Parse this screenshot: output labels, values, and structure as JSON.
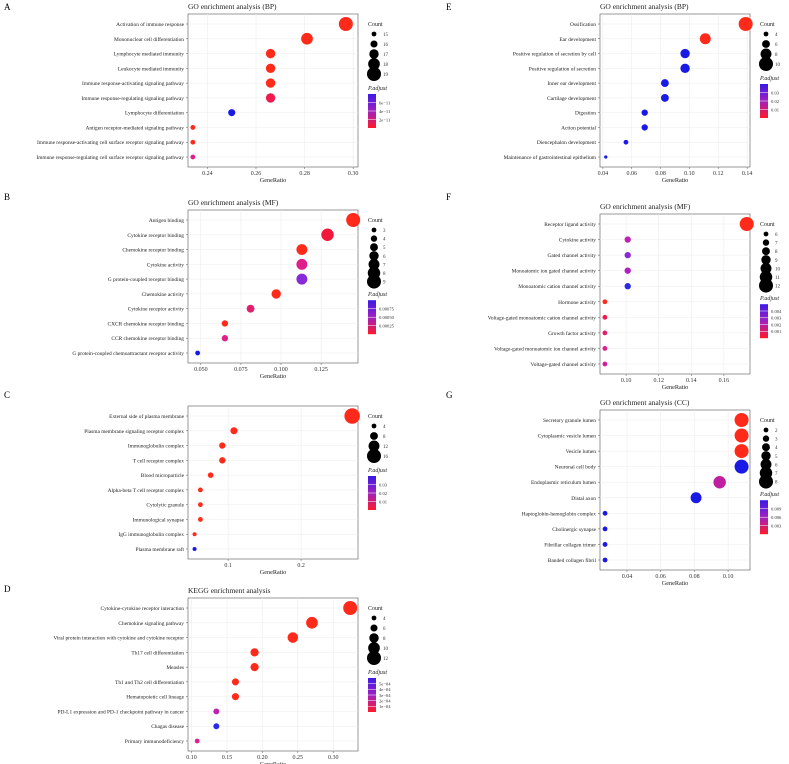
{
  "figure": {
    "panels_order": [
      "A",
      "B",
      "C",
      "D",
      "E",
      "F",
      "G"
    ]
  },
  "chart_data": [
    {
      "panel": "A",
      "type": "scatter",
      "title": "GO enrichment analysis (BP)",
      "xlabel": "GeneRatio",
      "xlim": [
        0.232,
        0.302
      ],
      "xticks": [
        "0.24",
        "0.26",
        "0.28",
        "0.30"
      ],
      "xtick_values": [
        0.24,
        0.26,
        0.28,
        0.3
      ],
      "categories": [
        "Activation of immune response",
        "Mononuclear cell differentiation",
        "Lymphocyte mediated immunity",
        "Leukocyte mediated immunity",
        "Immune response-activating signaling pathway",
        "Immune response-regulating signaling pathway",
        "Lymphocyte differentiation",
        "Antigen receptor-mediated signaling pathway",
        "Immune response-activating cell surface receptor signaling pathway",
        "Immune response-regulating cell surface receptor signaling pathway"
      ],
      "values": [
        0.297,
        0.281,
        0.266,
        0.266,
        0.266,
        0.266,
        0.25,
        0.234,
        0.234,
        0.234
      ],
      "counts": [
        19,
        18,
        17,
        17,
        17,
        17,
        16,
        15,
        15,
        15
      ],
      "colors": [
        "#ff2a1a",
        "#ff2a1a",
        "#ff2a1a",
        "#ff2a1a",
        "#ff2a1a",
        "#f01a50",
        "#1a1ae6",
        "#ff2a1a",
        "#ff2a1a",
        "#e0208a"
      ],
      "size_legend_title": "Count",
      "size_legend_labels": [
        "15",
        "16",
        "17",
        "18",
        "19"
      ],
      "size_legend_values": [
        15,
        16,
        17,
        18,
        19
      ],
      "color_legend_title": "P.adjust",
      "color_legend_labels": [
        "6e−11",
        "4e−11",
        "2e−11"
      ]
    },
    {
      "panel": "B",
      "type": "scatter",
      "title": "GO enrichment analysis (MF)",
      "xlabel": "GeneRatio",
      "xlim": [
        0.042,
        0.148
      ],
      "xticks": [
        "0.050",
        "0.075",
        "0.100",
        "0.125",
        "0.150"
      ],
      "xtick_values": [
        0.05,
        0.075,
        0.1,
        0.125,
        0.15
      ],
      "categories": [
        "Antigen binding",
        "Cytokine receptor binding",
        "Chemokine receptor binding",
        "Cytokine activity",
        "G protein-coupled receptor binding",
        "Chemokine activity",
        "Cytokine receptor activity",
        "CXCR chemokine receptor binding",
        "CCR chemokine receptor binding",
        "G protein-coupled chemoattractant receptor activity"
      ],
      "values": [
        0.145,
        0.129,
        0.113,
        0.113,
        0.113,
        0.097,
        0.081,
        0.065,
        0.065,
        0.048
      ],
      "counts": [
        9,
        8,
        7,
        7,
        7,
        6,
        5,
        4,
        4,
        3
      ],
      "colors": [
        "#ff2a1a",
        "#f2183a",
        "#ff2a1a",
        "#e0208a",
        "#8a2ad6",
        "#ff2a1a",
        "#e0206a",
        "#ff2a1a",
        "#e0208a",
        "#1a1ae6"
      ],
      "size_legend_title": "Count",
      "size_legend_labels": [
        "3",
        "4",
        "5",
        "6",
        "7",
        "8",
        "9"
      ],
      "size_legend_values": [
        3,
        4,
        5,
        6,
        7,
        8,
        9
      ],
      "color_legend_title": "P.adjust",
      "color_legend_labels": [
        "0.00075",
        "0.00050",
        "0.00025"
      ]
    },
    {
      "panel": "C",
      "type": "scatter",
      "title": "",
      "xlabel": "GeneRatio",
      "xlim": [
        0.045,
        0.278
      ],
      "xticks": [
        "0.1",
        "0.2"
      ],
      "xtick_values": [
        0.1,
        0.2
      ],
      "categories": [
        "External side of plasma membrane",
        "Plasma membrane signaling receptor complex",
        "Immunoglobulin complex",
        "T cell receptor complex",
        "Blood microparticle",
        "Alpha-beta T cell receptor complex",
        "Cytolytic granule",
        "Immunological synapse",
        "IgG immunoglobulin complex",
        "Plasma membrane raft"
      ],
      "values": [
        0.27,
        0.108,
        0.092,
        0.092,
        0.076,
        0.062,
        0.062,
        0.062,
        0.054,
        0.054
      ],
      "counts": [
        18,
        7,
        6,
        6,
        5,
        4,
        4,
        4,
        3,
        3
      ],
      "colors": [
        "#ff2a1a",
        "#ff2a1a",
        "#ff2a1a",
        "#ff2a1a",
        "#ff2a1a",
        "#ff2a1a",
        "#ff2a1a",
        "#ff2a1a",
        "#ff2a1a",
        "#1a1ae6"
      ],
      "size_legend_title": "Count",
      "size_legend_labels": [
        "4",
        "8",
        "12",
        "16"
      ],
      "size_legend_values": [
        4,
        8,
        12,
        16
      ],
      "color_legend_title": "P.adjust",
      "color_legend_labels": [
        "0.03",
        "0.02",
        "0.01"
      ]
    },
    {
      "panel": "D",
      "type": "scatter",
      "title": "KEGG enrichment analysis",
      "xlabel": "GeneRatio",
      "xlim": [
        0.095,
        0.335
      ],
      "xticks": [
        "0.10",
        "0.15",
        "0.20",
        "0.25",
        "0.30"
      ],
      "xtick_values": [
        0.1,
        0.15,
        0.2,
        0.25,
        0.3
      ],
      "categories": [
        "Cytokine-cytokine receptor interaction",
        "Chemokine signaling pathway",
        "Viral protein interaction with cytokine and cytokine receptor",
        "Th17 cell differentiation",
        "Measles",
        "Th1 and Th2 cell differentiation",
        "Hematopoietic cell lineage",
        "PD-L1 expression and PD-1 checkpoint pathway in cancer",
        "Chagas disease",
        "Primary immunodeficiency"
      ],
      "values": [
        0.324,
        0.27,
        0.243,
        0.189,
        0.189,
        0.162,
        0.162,
        0.135,
        0.135,
        0.108
      ],
      "counts": [
        12,
        10,
        9,
        7,
        7,
        6,
        6,
        5,
        5,
        4
      ],
      "colors": [
        "#ff2a1a",
        "#ff2a1a",
        "#ff2a1a",
        "#ff2a1a",
        "#ff2a1a",
        "#ff2a1a",
        "#ff2a1a",
        "#c020b0",
        "#2a2ae6",
        "#e0208a"
      ],
      "size_legend_title": "Count",
      "size_legend_labels": [
        "4",
        "6",
        "8",
        "10",
        "12"
      ],
      "size_legend_values": [
        4,
        6,
        8,
        10,
        12
      ],
      "color_legend_title": "P.adjust",
      "color_legend_labels": [
        "5e−04",
        "4e−04",
        "3e−04",
        "2e−04",
        "1e−04"
      ]
    },
    {
      "panel": "E",
      "type": "scatter",
      "title": "GO enrichment analysis (BP)",
      "xlabel": "GeneRatio",
      "xlim": [
        0.038,
        0.142
      ],
      "xticks": [
        "0.04",
        "0.06",
        "0.08",
        "0.10",
        "0.12",
        "0.14"
      ],
      "xtick_values": [
        0.04,
        0.06,
        0.08,
        0.1,
        0.12,
        0.14
      ],
      "categories": [
        "Ossification",
        "Ear development",
        "Positive regulation of secretion by cell",
        "Positive regulation of secretion",
        "Inner ear development",
        "Cartilage development",
        "Digestion",
        "Action potential",
        "Diencephalon development",
        "Maintenance of gastrointestinal epithelium"
      ],
      "values": [
        0.139,
        0.111,
        0.097,
        0.097,
        0.083,
        0.083,
        0.069,
        0.069,
        0.056,
        0.042
      ],
      "counts": [
        10,
        8,
        7,
        7,
        6,
        6,
        5,
        5,
        4,
        3
      ],
      "colors": [
        "#ff2a1a",
        "#ff2a1a",
        "#1a1ae6",
        "#1a1ae6",
        "#1a1ae6",
        "#1a1ae6",
        "#1a1ae6",
        "#1a1ae6",
        "#1a1ae6",
        "#1a1ae6"
      ],
      "size_legend_title": "Count",
      "size_legend_labels": [
        "4",
        "6",
        "8",
        "10"
      ],
      "size_legend_values": [
        4,
        6,
        8,
        10
      ],
      "color_legend_title": "P.adjust",
      "color_legend_labels": [
        "0.03",
        "0.02",
        "0.01"
      ]
    },
    {
      "panel": "F",
      "type": "scatter",
      "title": "GO enrichment analysis (MF)",
      "xlabel": "GeneRatio",
      "xlim": [
        0.084,
        0.176
      ],
      "xticks": [
        "0.10",
        "0.12",
        "0.14",
        "0.16"
      ],
      "xtick_values": [
        0.1,
        0.12,
        0.14,
        0.16
      ],
      "categories": [
        "Receptor ligand activity",
        "Cytokine activity",
        "Gated channel activity",
        "Monoatomic ion gated channel activity",
        "Monoatomic cation channel activity",
        "Hormone activity",
        "Voltage-gated monoatomic cation channel activity",
        "Growth factor activity",
        "Voltage-gated monoatomic ion channel activity",
        "Voltage-gated channel activity"
      ],
      "values": [
        0.174,
        0.101,
        0.101,
        0.101,
        0.101,
        0.087,
        0.087,
        0.087,
        0.087,
        0.087
      ],
      "counts": [
        12,
        7,
        7,
        7,
        7,
        6,
        6,
        6,
        6,
        6
      ],
      "colors": [
        "#ff2a1a",
        "#c020b0",
        "#8a2ad6",
        "#b020c0",
        "#2a2ae6",
        "#ff2a1a",
        "#f01a50",
        "#e0206a",
        "#e0208a",
        "#d020a0"
      ],
      "size_legend_title": "Count",
      "size_legend_labels": [
        "6",
        "7",
        "8",
        "9",
        "10",
        "11",
        "12"
      ],
      "size_legend_values": [
        6,
        7,
        8,
        9,
        10,
        11,
        12
      ],
      "color_legend_title": "P.adjust",
      "color_legend_labels": [
        "0.004",
        "0.003",
        "0.002",
        "0.001"
      ]
    },
    {
      "panel": "G",
      "type": "scatter",
      "title": "GO enrichment analysis (CC)",
      "xlabel": "GeneRatio",
      "xlim": [
        0.024,
        0.113
      ],
      "xticks": [
        "0.04",
        "0.06",
        "0.08",
        "0.10"
      ],
      "xtick_values": [
        0.04,
        0.06,
        0.08,
        0.1
      ],
      "categories": [
        "Secretory granule lumen",
        "Cytoplasmic vesicle lumen",
        "Vesicle lumen",
        "Neuronal cell body",
        "Endoplasmic reticulum lumen",
        "Distal axon",
        "Haptoglobin-hemoglobin complex",
        "Cholinergic synapse",
        "Fibrillar collagen trimer",
        "Banded collagen fibril"
      ],
      "values": [
        0.108,
        0.108,
        0.108,
        0.108,
        0.095,
        0.081,
        0.027,
        0.027,
        0.027,
        0.027
      ],
      "counts": [
        8,
        8,
        8,
        8,
        7,
        6,
        2,
        2,
        2,
        2
      ],
      "colors": [
        "#ff2a1a",
        "#ff2a1a",
        "#ff2a1a",
        "#1a1ae6",
        "#c020a0",
        "#1a1ae6",
        "#1a1ae6",
        "#1a1ae6",
        "#1a1ae6",
        "#1a1ae6"
      ],
      "size_legend_title": "Count",
      "size_legend_labels": [
        "2",
        "3",
        "4",
        "5",
        "6",
        "7",
        "8"
      ],
      "size_legend_values": [
        2,
        3,
        4,
        5,
        6,
        7,
        8
      ],
      "color_legend_title": "P.adjust",
      "color_legend_labels": [
        "0.009",
        "0.006",
        "0.003"
      ]
    }
  ]
}
